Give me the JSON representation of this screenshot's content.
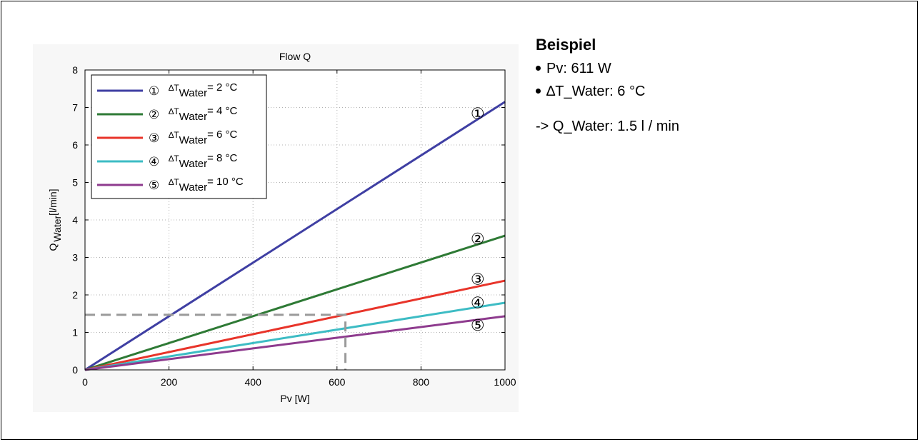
{
  "side": {
    "heading": "Beispiel",
    "bullets": [
      "Pv: 611 W",
      "∆T_Water: 6 °C"
    ],
    "result": "-> Q_Water: 1.5 l / min"
  },
  "chart_data": {
    "type": "line",
    "title": "Flow Q",
    "xlabel": "Pv [W]",
    "ylabel_main": "Q",
    "ylabel_sub": "Water",
    "ylabel_unit": "[l/min]",
    "xlim": [
      0,
      1000
    ],
    "ylim": [
      0,
      8
    ],
    "xticks": [
      0,
      200,
      400,
      600,
      800,
      1000
    ],
    "yticks": [
      0,
      1,
      2,
      3,
      4,
      5,
      6,
      7,
      8
    ],
    "grid": true,
    "legend_position": "top-left",
    "series": [
      {
        "marker": "①",
        "dt_label": "∆T",
        "dt_sub": "Water",
        "dt_value": "= 2 °C",
        "color": "#3f3fa3",
        "x": [
          0,
          1000
        ],
        "y": [
          0,
          7.15
        ]
      },
      {
        "marker": "②",
        "dt_label": "∆T",
        "dt_sub": "Water",
        "dt_value": "= 4 °C",
        "color": "#2e7a35",
        "x": [
          0,
          1000
        ],
        "y": [
          0,
          3.58
        ]
      },
      {
        "marker": "③",
        "dt_label": "∆T",
        "dt_sub": "Water",
        "dt_value": "= 6 °C",
        "color": "#e8342a",
        "x": [
          0,
          1000
        ],
        "y": [
          0,
          2.38
        ]
      },
      {
        "marker": "④",
        "dt_label": "∆T",
        "dt_sub": "Water",
        "dt_value": "= 8 °C",
        "color": "#3dbcc4",
        "x": [
          0,
          1000
        ],
        "y": [
          0,
          1.79
        ]
      },
      {
        "marker": "⑤",
        "dt_label": "∆T",
        "dt_sub": "Water",
        "dt_value": "= 10 °C",
        "color": "#8e3b8e",
        "x": [
          0,
          1000
        ],
        "y": [
          0,
          1.43
        ]
      }
    ],
    "annotation": {
      "x": 620,
      "y": 1.47,
      "color": "#9a9a9a"
    },
    "curve_labels": [
      {
        "marker": "①",
        "x": 935,
        "y": 6.7
      },
      {
        "marker": "②",
        "x": 935,
        "y": 3.35
      },
      {
        "marker": "③",
        "x": 935,
        "y": 2.28
      },
      {
        "marker": "④",
        "x": 935,
        "y": 1.65
      },
      {
        "marker": "⑤",
        "x": 935,
        "y": 1.05
      }
    ]
  }
}
